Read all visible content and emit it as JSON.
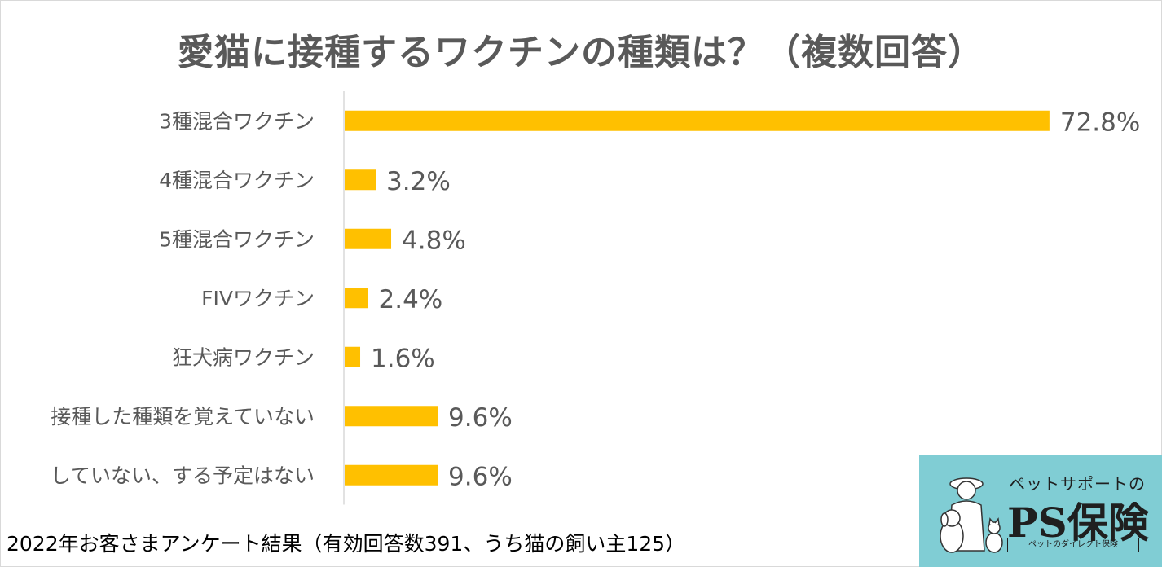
{
  "title": "愛猫に接種するワクチンの種類は？（複数回答）",
  "footnote": "2022年お客さまアンケート結果（有効回答数391、うち猫の飼い主125）",
  "logo": {
    "tagline": "ペットサポートの",
    "brand": "PS保険",
    "subline": "ペットのダイレクト保険"
  },
  "colors": {
    "bar": "#ffc000",
    "text": "#595959",
    "axis": "#d9d9d9",
    "logo_bg": "#80cdd4"
  },
  "chart_data": {
    "type": "bar",
    "orientation": "horizontal",
    "categories": [
      "3種混合ワクチン",
      "4種混合ワクチン",
      "5種混合ワクチン",
      "FIVワクチン",
      "狂犬病ワクチン",
      "接種した種類を覚えていない",
      "していない、する予定はない"
    ],
    "values": [
      72.8,
      3.2,
      4.8,
      2.4,
      1.6,
      9.6,
      9.6
    ],
    "labels": [
      "72.8%",
      "3.2%",
      "4.8%",
      "2.4%",
      "1.6%",
      "9.6%",
      "9.6%"
    ],
    "unit": "%",
    "xlim": [
      0,
      100
    ],
    "grid": false,
    "legend": "none"
  }
}
